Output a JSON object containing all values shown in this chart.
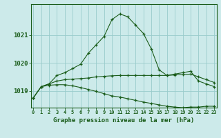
{
  "title": "Graphe pression niveau de la mer (hPa)",
  "background_color": "#cceaea",
  "grid_color": "#99cccc",
  "line_color": "#1a5c1a",
  "x_labels": [
    "0",
    "1",
    "2",
    "3",
    "4",
    "5",
    "6",
    "7",
    "8",
    "9",
    "10",
    "11",
    "12",
    "13",
    "14",
    "15",
    "16",
    "17",
    "18",
    "19",
    "20",
    "21",
    "22",
    "23"
  ],
  "ylim": [
    1018.4,
    1022.1
  ],
  "yticks": [
    1019,
    1020,
    1021
  ],
  "series1": [
    1018.75,
    1019.15,
    1019.25,
    1019.55,
    1019.65,
    1019.8,
    1019.95,
    1020.35,
    1020.65,
    1020.95,
    1021.55,
    1021.75,
    1021.65,
    1021.35,
    1021.05,
    1020.5,
    1019.75,
    1019.55,
    1019.6,
    1019.65,
    1019.7,
    1019.35,
    1019.25,
    1019.15
  ],
  "series2": [
    1018.75,
    1019.15,
    1019.25,
    1019.35,
    1019.4,
    1019.42,
    1019.44,
    1019.46,
    1019.5,
    1019.52,
    1019.54,
    1019.55,
    1019.55,
    1019.55,
    1019.55,
    1019.55,
    1019.55,
    1019.55,
    1019.57,
    1019.58,
    1019.6,
    1019.5,
    1019.4,
    1019.3
  ],
  "series3": [
    1018.75,
    1019.15,
    1019.2,
    1019.22,
    1019.22,
    1019.18,
    1019.12,
    1019.05,
    1018.98,
    1018.9,
    1018.82,
    1018.78,
    1018.72,
    1018.66,
    1018.6,
    1018.55,
    1018.5,
    1018.45,
    1018.42,
    1018.4,
    1018.42,
    1018.42,
    1018.45,
    1018.45
  ]
}
